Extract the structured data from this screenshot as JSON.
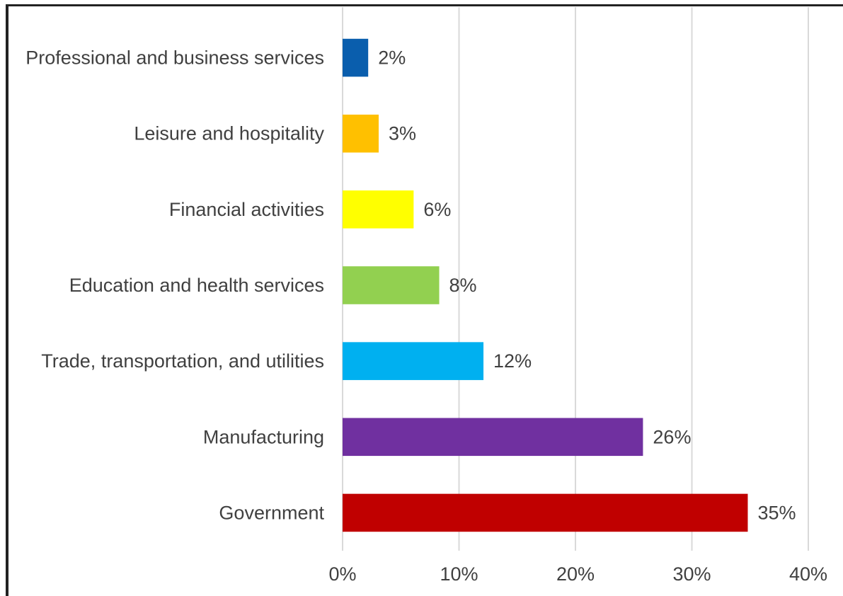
{
  "chart_data": {
    "type": "bar",
    "orientation": "horizontal",
    "categories": [
      "Professional and business services",
      "Leisure and hospitality",
      "Financial activities",
      "Education and health services",
      "Trade, transportation, and utilities",
      "Manufacturing",
      "Government"
    ],
    "values": [
      2.2,
      3.1,
      6.1,
      8.3,
      12.1,
      25.8,
      34.8
    ],
    "value_labels": [
      "2%",
      "3%",
      "6%",
      "8%",
      "12%",
      "26%",
      "35%"
    ],
    "colors": [
      "#0A5EAD",
      "#FFC000",
      "#FFFF00",
      "#92D050",
      "#00B0F0",
      "#7030A0",
      "#C00000"
    ],
    "xlim": [
      0,
      40
    ],
    "xticks": [
      0,
      10,
      20,
      30,
      40
    ],
    "xtick_labels": [
      "0%",
      "10%",
      "20%",
      "30%",
      "40%"
    ],
    "grid": "vertical",
    "legend": "none",
    "title": "",
    "xlabel": "",
    "ylabel": ""
  }
}
